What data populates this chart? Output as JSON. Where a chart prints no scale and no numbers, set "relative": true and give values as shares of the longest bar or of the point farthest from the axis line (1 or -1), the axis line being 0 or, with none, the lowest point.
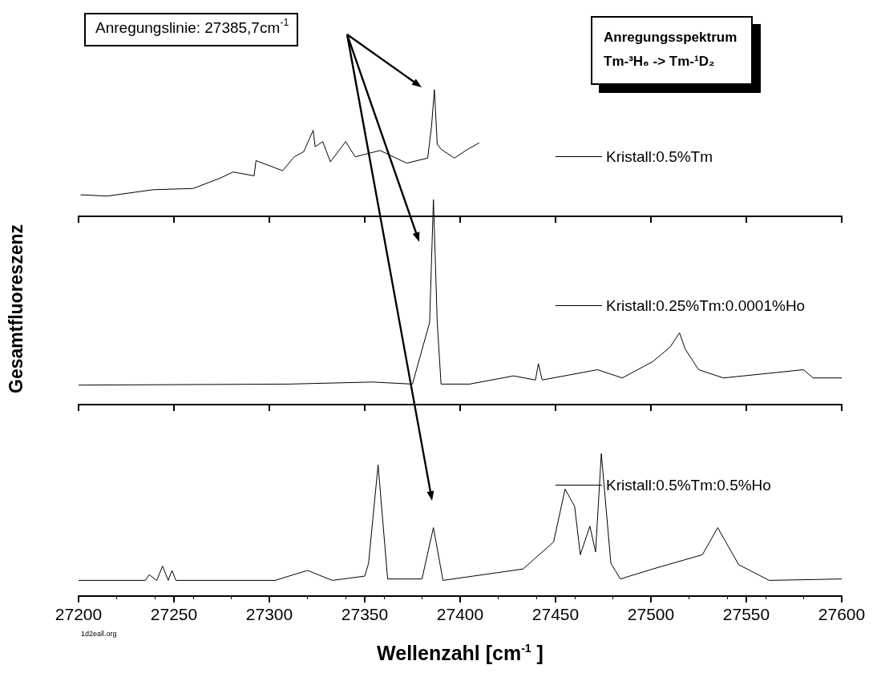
{
  "chart_data": [
    {
      "type": "line",
      "relative": true,
      "xlim": [
        27200,
        27600
      ],
      "xticks": [
        27200,
        27250,
        27300,
        27350,
        27400,
        27450,
        27500,
        27550,
        27600
      ],
      "tick_labels": false,
      "legend": "right",
      "annotations": [
        "Anregungslinie: 27385,7cm$^{-1}$",
        "Anregungsspektrum\nTm-³H₆ -> Tm-¹D₂"
      ],
      "x": [
        27201,
        27215,
        27239,
        27260,
        27274,
        27281,
        27292,
        27293,
        27307,
        27313,
        27318,
        27323,
        27324,
        27328,
        27332,
        27340,
        27345,
        27358,
        27372,
        27383,
        27385,
        27386.5,
        27388,
        27390,
        27397,
        27404,
        27410
      ],
      "series": [
        {
          "name": "Kristall:0.5%Tm",
          "color": "#000000",
          "values": [
            0.17,
            0.16,
            0.21,
            0.22,
            0.3,
            0.35,
            0.32,
            0.44,
            0.36,
            0.47,
            0.51,
            0.68,
            0.55,
            0.59,
            0.43,
            0.59,
            0.47,
            0.52,
            0.42,
            0.46,
            0.71,
            1.0,
            0.57,
            0.53,
            0.46,
            0.53,
            0.58
          ]
        }
      ]
    },
    {
      "type": "line",
      "relative": true,
      "xlim": [
        27200,
        27600
      ],
      "xticks": [
        27200,
        27250,
        27300,
        27350,
        27400,
        27450,
        27500,
        27550,
        27600
      ],
      "tick_labels": false,
      "legend": "right",
      "ylabel": "Gesamtfluoreszenz",
      "x": [
        27200,
        27310,
        27354,
        27375,
        27384,
        27386,
        27388,
        27390,
        27405,
        27428,
        27439.5,
        27441,
        27443,
        27472,
        27485,
        27501,
        27510,
        27515,
        27518,
        27525,
        27538,
        27580,
        27585,
        27600
      ],
      "series": [
        {
          "name": "Kristall:0.25%Tm:0.0001%Ho",
          "color": "#000000",
          "values": [
            0.095,
            0.1,
            0.11,
            0.1,
            0.4,
            1.0,
            0.4,
            0.1,
            0.1,
            0.14,
            0.12,
            0.2,
            0.12,
            0.17,
            0.13,
            0.21,
            0.28,
            0.35,
            0.27,
            0.17,
            0.13,
            0.17,
            0.13,
            0.13
          ]
        }
      ]
    },
    {
      "type": "line",
      "relative": true,
      "xlim": [
        27200,
        27600
      ],
      "xticks": [
        27200,
        27250,
        27300,
        27350,
        27400,
        27450,
        27500,
        27550,
        27600
      ],
      "tick_labels": "x",
      "legend": "top right",
      "xlabel": "Wellenzahl [cm$^{-1}$ ]",
      "annotations": [
        "1d2eall.org"
      ],
      "x": [
        27200,
        27235,
        27237,
        27241,
        27244,
        27247,
        27249,
        27251,
        27303,
        27320,
        27333,
        27350,
        27352,
        27357,
        27362,
        27380,
        27386,
        27391,
        27433,
        27449,
        27455,
        27460,
        27463,
        27468,
        27471,
        27474,
        27479,
        27484,
        27501,
        27527,
        27535,
        27546,
        27562,
        27600
      ],
      "series": [
        {
          "name": "Kristall:0.5%Tm:0.5%Ho",
          "color": "#000000",
          "values": [
            0.11,
            0.11,
            0.15,
            0.11,
            0.21,
            0.11,
            0.18,
            0.11,
            0.11,
            0.18,
            0.11,
            0.14,
            0.23,
            0.92,
            0.12,
            0.12,
            0.48,
            0.11,
            0.19,
            0.38,
            0.75,
            0.63,
            0.29,
            0.49,
            0.31,
            1.0,
            0.23,
            0.12,
            0.19,
            0.29,
            0.48,
            0.22,
            0.11,
            0.12
          ]
        }
      ]
    }
  ]
}
